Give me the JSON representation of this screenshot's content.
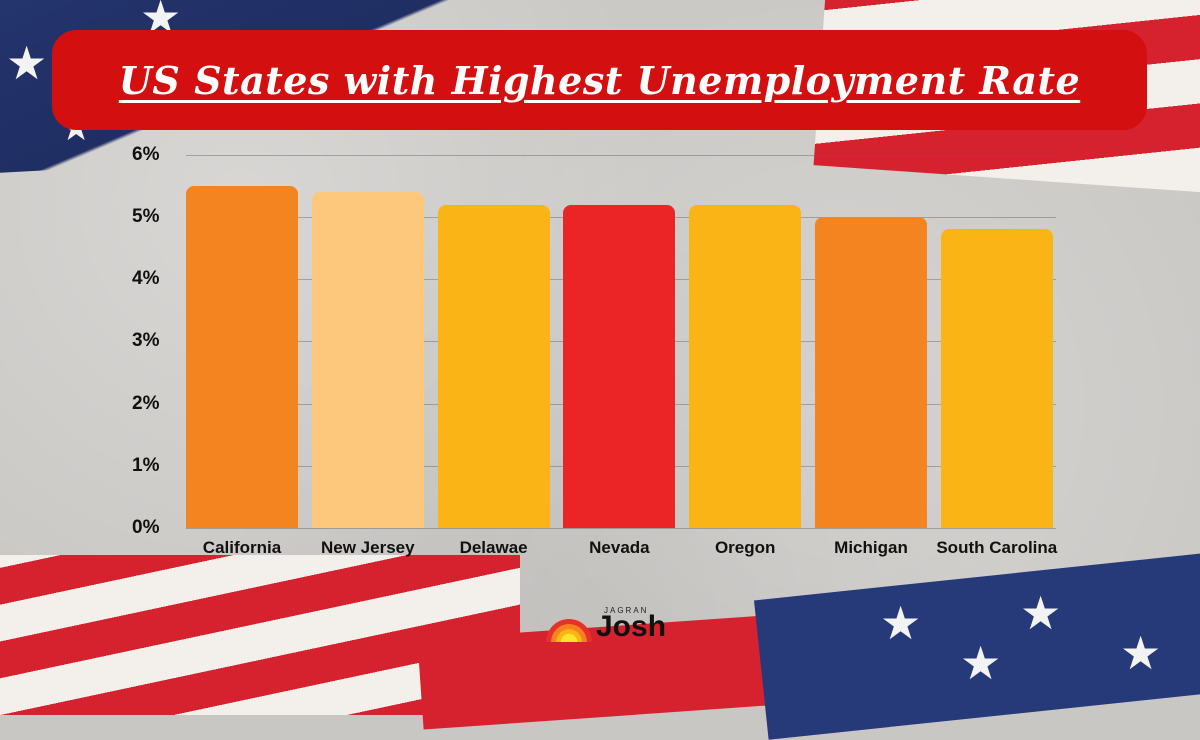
{
  "title": "US States with Highest Unemployment Rate",
  "logo": {
    "small": "JAGRAN",
    "big": "Josh"
  },
  "colors": {
    "banner": "#d30f0f",
    "california": "#f3841f",
    "new_jersey": "#fdc87c",
    "delaware": "#fbb416",
    "nevada": "#eb2525",
    "oregon": "#fbb416",
    "michigan": "#f3841f",
    "south_carolina": "#fbb416"
  },
  "chart_data": {
    "type": "bar",
    "title": "US States with Highest Unemployment Rate",
    "xlabel": "",
    "ylabel": "",
    "categories": [
      "California",
      "New Jersey",
      "Delawae",
      "Nevada",
      "Oregon",
      "Michigan",
      "South Carolina"
    ],
    "values": [
      5.5,
      5.4,
      5.2,
      5.2,
      5.2,
      5.0,
      4.8
    ],
    "value_unit": "%",
    "ylim": [
      0,
      6
    ],
    "yticks": [
      "0%",
      "1%",
      "2%",
      "3%",
      "4%",
      "5%",
      "6%"
    ],
    "grid": true,
    "legend": null
  }
}
